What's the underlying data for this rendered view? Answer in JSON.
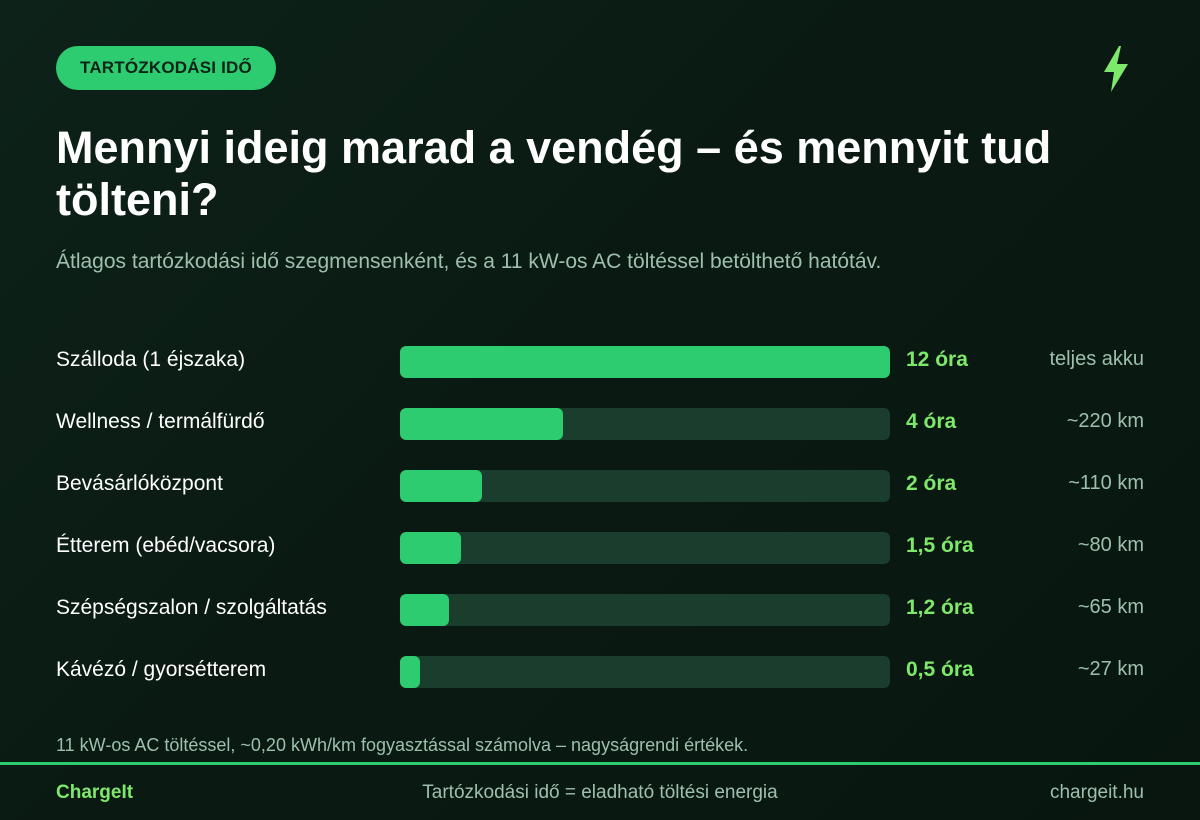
{
  "badge": "TARTÓZKODÁSI IDŐ",
  "icon": "lightning-bolt-icon",
  "title": "Mennyi ideig marad a vendég – és mennyit tud tölteni?",
  "subtitle": "Átlagos tartózkodási idő szegmensenként, és a 11 kW-os AC töltéssel betölthető hatótáv.",
  "colors": {
    "accent": "#2ecc71",
    "highlight": "#7ee86a",
    "track": "#1b3d2d",
    "background": "#0b1d14"
  },
  "chart_data": {
    "type": "bar",
    "orientation": "horizontal",
    "max": 12,
    "categories": [
      "Szálloda (1 éjszaka)",
      "Wellness / termálfürdő",
      "Bevásárlóközpont",
      "Étterem (ebéd/vacsora)",
      "Szépségszalon / szolgáltatás",
      "Kávézó / gyorsétterem"
    ],
    "values": [
      12,
      4,
      2,
      1.5,
      1.2,
      0.5
    ],
    "value_labels": [
      "12 óra",
      "4 óra",
      "2 óra",
      "1,5 óra",
      "1,2 óra",
      "0,5 óra"
    ],
    "range_labels": [
      "teljes akku",
      "~220 km",
      "~110 km",
      "~80 km",
      "~65 km",
      "~27 km"
    ]
  },
  "footnote": "11 kW-os AC töltéssel, ~0,20 kWh/km fogyasztással számolva – nagyságrendi értékek.",
  "footer": {
    "brand": "ChargeIt",
    "tagline": "Tartózkodási idő = eladható töltési energia",
    "url": "chargeit.hu"
  }
}
